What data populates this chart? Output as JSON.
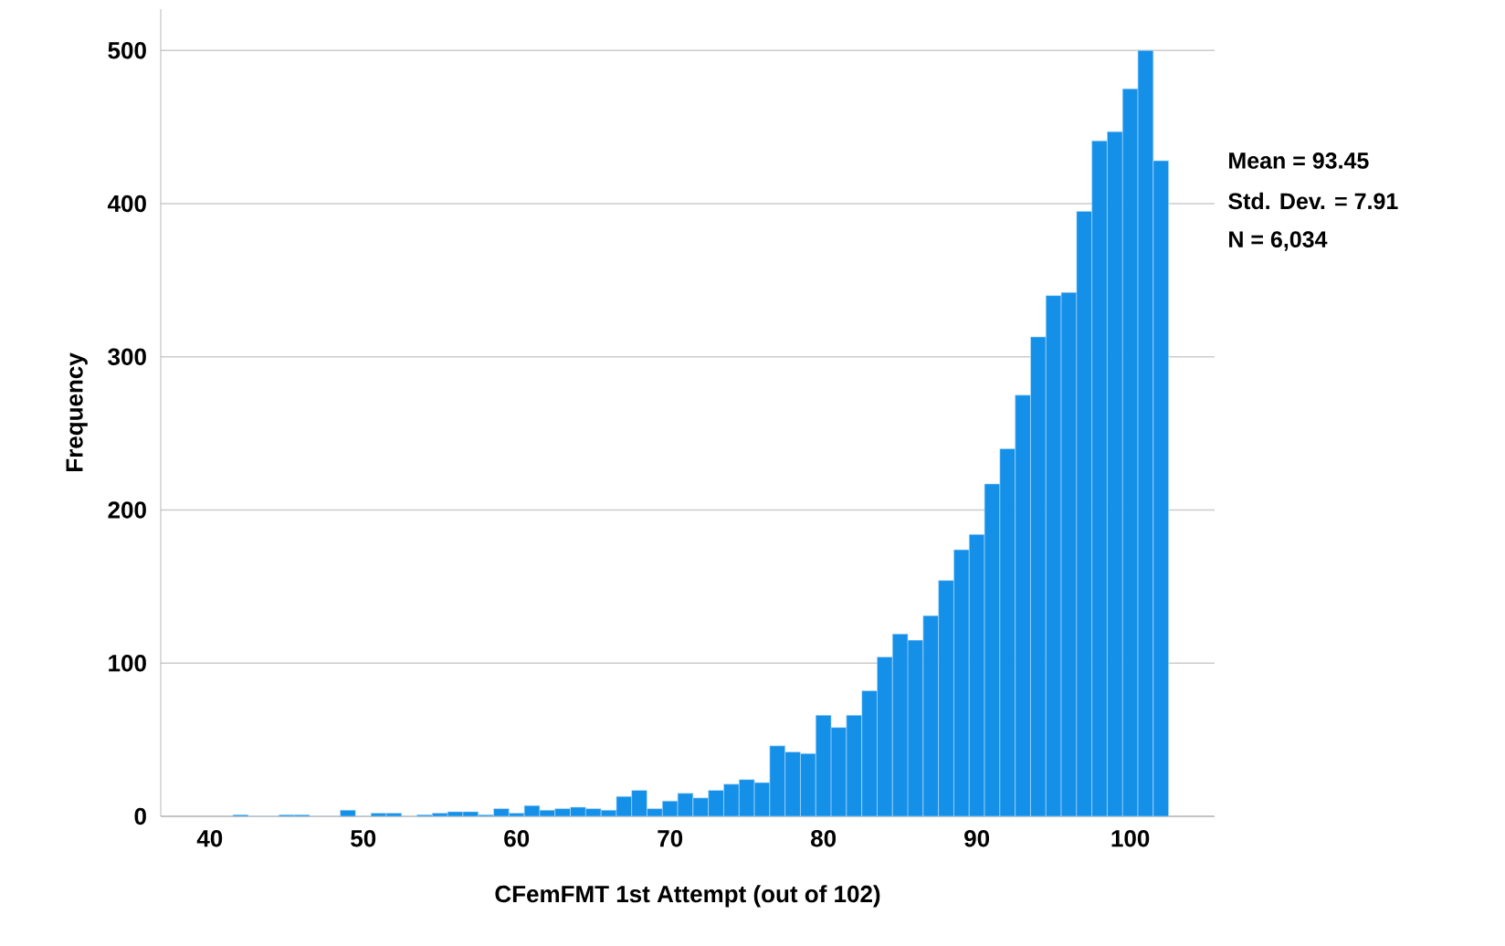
{
  "chart_data": {
    "type": "histogram",
    "xlabel": "CFemFMT 1st Attempt (out of 102)",
    "ylabel": "Frequency",
    "bins": [
      41.5,
      42.5,
      43.5,
      44.5,
      45.5,
      46.5,
      47.5,
      48.5,
      49.5,
      50.5,
      51.5,
      52.5,
      53.5,
      54.5,
      55.5,
      56.5,
      57.5,
      58.5,
      59.5,
      60.5,
      61.5,
      62.5,
      63.5,
      64.5,
      65.5,
      66.5,
      67.5,
      68.5,
      69.5,
      70.5,
      71.5,
      72.5,
      73.5,
      74.5,
      75.5,
      76.5,
      77.5,
      78.5,
      79.5,
      80.5,
      81.5,
      82.5,
      83.5,
      84.5,
      85.5,
      86.5,
      87.5,
      88.5,
      89.5,
      90.5,
      91.5,
      92.5,
      93.5,
      94.5,
      95.5,
      96.5,
      97.5,
      98.5,
      99.5,
      100.5,
      101.5,
      102.5
    ],
    "values": [
      1,
      0,
      0,
      1,
      1,
      0,
      0,
      4,
      0,
      2,
      2,
      0,
      1,
      2,
      3,
      3,
      1,
      5,
      2,
      7,
      4,
      5,
      6,
      5,
      4,
      13,
      17,
      5,
      10,
      15,
      12,
      17,
      21,
      24,
      22,
      46,
      42,
      41,
      66,
      58,
      66,
      82,
      104,
      119,
      115,
      131,
      154,
      174,
      184,
      217,
      240,
      275,
      313,
      340,
      342,
      395,
      441,
      447,
      475,
      500,
      428
    ],
    "color": "#1590e8",
    "xlim": [
      36.8,
      105.5
    ],
    "xticks": [
      40,
      50,
      60,
      70,
      80,
      90,
      100
    ],
    "ylim": [
      0,
      527
    ],
    "yticks": [
      0,
      100,
      200,
      300,
      400,
      500
    ],
    "grid": "y",
    "annotations": [
      "Mean = 93.45",
      "Std. Dev. = 7.91",
      "N = 6,034"
    ]
  }
}
